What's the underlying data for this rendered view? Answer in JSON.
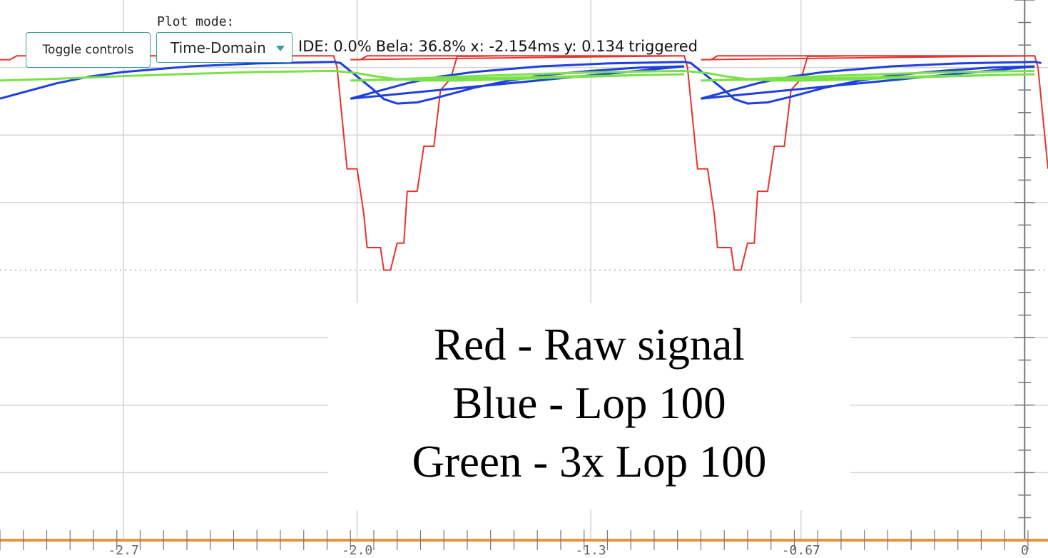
{
  "controls": {
    "toggle_label": "Toggle controls",
    "plot_mode_label": "Plot mode:",
    "plot_mode_value": "Time-Domain"
  },
  "status": {
    "ide": "IDE: 0.0%",
    "bela": "Bela: 36.8%",
    "x": "x: -2.154ms",
    "y": "y: 0.134",
    "trigger": "triggered"
  },
  "legend": {
    "line1": "Red - Raw signal",
    "line2": "Blue - Lop 100",
    "line3": "Green - 3x Lop 100"
  },
  "colors": {
    "raw": "#e8322a",
    "lop": "#1f3fe0",
    "lop3": "#7be04a",
    "grid": "#d4d4d4",
    "axis": "#777777",
    "x_axis_bar": "#f0913a",
    "accent": "#3a9f97"
  },
  "chart_data": {
    "type": "line",
    "x_ticks": [
      "-2.7",
      "-2.0",
      "-1.3",
      "-0.67",
      "0"
    ],
    "x_tick_values": [
      -2.7,
      -2.0,
      -1.3,
      -0.67,
      0
    ],
    "xlim": [
      -3.07,
      0.07
    ],
    "ylim": [
      -1.2,
      1.2
    ],
    "period": 1.05,
    "series": [
      {
        "key": "raw",
        "points": [
          [
            -3.07,
            0.935
          ],
          [
            -3.04,
            0.935
          ],
          [
            -3.02,
            0.952
          ],
          [
            -2.9,
            0.952
          ],
          [
            -2.8,
            0.952
          ],
          [
            -2.58,
            0.952
          ],
          [
            -2.3,
            0.952
          ],
          [
            -2.07,
            0.952
          ],
          [
            -2.06,
            0.9
          ],
          [
            -2.03,
            0.45
          ],
          [
            -2.0,
            0.45
          ],
          [
            -1.98,
            0.25
          ],
          [
            -1.97,
            0.1
          ],
          [
            -1.93,
            0.1
          ],
          [
            -1.92,
            0.0
          ],
          [
            -1.9,
            0.0
          ],
          [
            -1.88,
            0.12
          ],
          [
            -1.86,
            0.12
          ],
          [
            -1.85,
            0.35
          ],
          [
            -1.82,
            0.35
          ],
          [
            -1.8,
            0.55
          ],
          [
            -1.77,
            0.55
          ],
          [
            -1.75,
            0.8
          ],
          [
            -1.72,
            0.85
          ],
          [
            -1.7,
            0.95
          ],
          [
            -1.65,
            0.95
          ],
          [
            -1.58,
            0.952
          ],
          [
            -1.5,
            0.952
          ],
          [
            -1.3,
            0.952
          ],
          [
            -1.02,
            0.952
          ]
        ]
      },
      {
        "key": "lop",
        "points": [
          [
            -3.07,
            0.762
          ],
          [
            -3.0,
            0.79
          ],
          [
            -2.9,
            0.83
          ],
          [
            -2.8,
            0.86
          ],
          [
            -2.7,
            0.88
          ],
          [
            -2.5,
            0.905
          ],
          [
            -2.3,
            0.918
          ],
          [
            -2.07,
            0.925
          ],
          [
            -2.05,
            0.92
          ],
          [
            -2.0,
            0.86
          ],
          [
            -1.95,
            0.8
          ],
          [
            -1.92,
            0.76
          ],
          [
            -1.88,
            0.74
          ],
          [
            -1.82,
            0.745
          ],
          [
            -1.75,
            0.77
          ],
          [
            -1.65,
            0.81
          ],
          [
            -1.55,
            0.84
          ],
          [
            -1.45,
            0.865
          ],
          [
            -1.3,
            0.885
          ],
          [
            -1.15,
            0.9
          ],
          [
            -1.02,
            0.905
          ]
        ]
      },
      {
        "key": "lop3",
        "points": [
          [
            -3.07,
            0.842
          ],
          [
            -2.9,
            0.85
          ],
          [
            -2.7,
            0.862
          ],
          [
            -2.5,
            0.872
          ],
          [
            -2.3,
            0.88
          ],
          [
            -2.07,
            0.885
          ],
          [
            -2.0,
            0.875
          ],
          [
            -1.95,
            0.862
          ],
          [
            -1.88,
            0.848
          ],
          [
            -1.8,
            0.842
          ],
          [
            -1.7,
            0.842
          ],
          [
            -1.55,
            0.848
          ],
          [
            -1.4,
            0.855
          ],
          [
            -1.25,
            0.862
          ],
          [
            -1.1,
            0.868
          ],
          [
            -1.02,
            0.87
          ]
        ]
      }
    ]
  }
}
